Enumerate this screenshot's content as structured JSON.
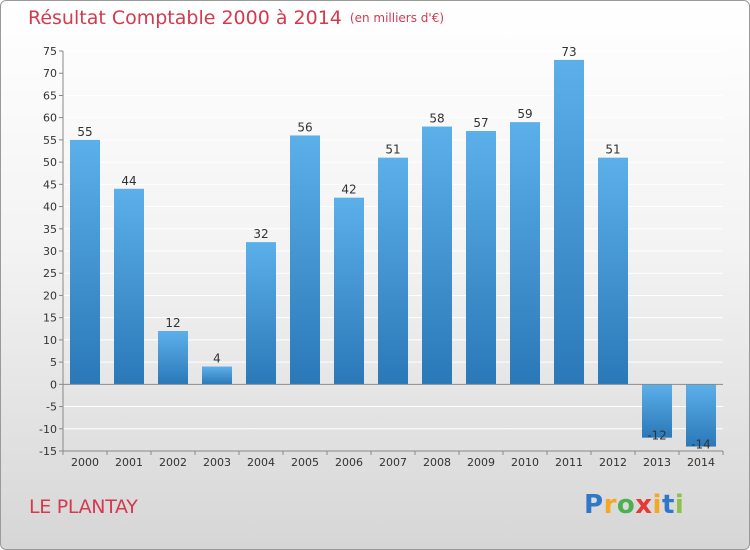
{
  "chart_data": {
    "type": "bar",
    "title": "Résultat Comptable 2000 à 2014",
    "subtitle": "(en milliers d'€)",
    "xlabel": "",
    "ylabel": "",
    "ylim": [
      -15,
      75
    ],
    "yticks": [
      75,
      70,
      65,
      60,
      55,
      50,
      45,
      40,
      35,
      30,
      25,
      20,
      15,
      10,
      5,
      0,
      -5,
      -10,
      -15
    ],
    "grid": true,
    "categories": [
      "2000",
      "2001",
      "2002",
      "2003",
      "2004",
      "2005",
      "2006",
      "2007",
      "2008",
      "2009",
      "2010",
      "2011",
      "2012",
      "2013",
      "2014"
    ],
    "values": [
      55,
      44,
      12,
      4,
      32,
      56,
      42,
      51,
      58,
      57,
      59,
      73,
      51,
      -12,
      -14
    ],
    "data_labels": [
      "55",
      "44",
      "12",
      "4",
      "32",
      "56",
      "42",
      "51",
      "58",
      "57",
      "59",
      "73",
      "51",
      "-12",
      "-14"
    ],
    "bar_color_top": "#5cb0ea",
    "bar_color_bottom": "#2a78b8"
  },
  "commune": "LE PLANTAY",
  "logo": {
    "text": "Proxiti",
    "letters": [
      "P",
      "r",
      "o",
      "x",
      "i",
      "t",
      "i"
    ]
  },
  "colors": {
    "title": "#d33a4e",
    "axis_text": "#333333",
    "grid": "#ffffff",
    "axis": "#888888"
  }
}
